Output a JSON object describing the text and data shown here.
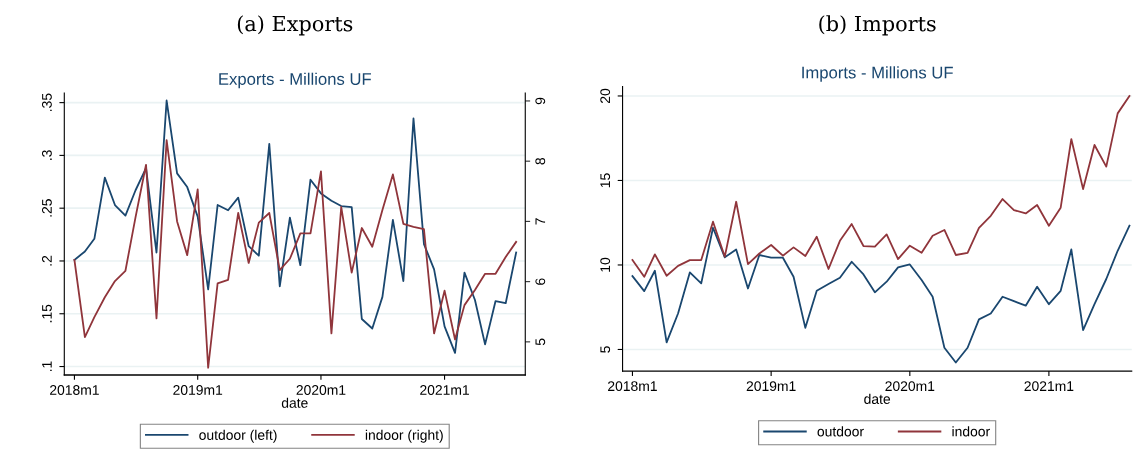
{
  "chart_data": [
    {
      "type": "line",
      "title": "(a) Exports",
      "subtitle": "Exports - Millions UF",
      "xlabel": "date",
      "x": [
        "2018-01",
        "2018-02",
        "2018-03",
        "2018-04",
        "2018-05",
        "2018-06",
        "2018-07",
        "2018-08",
        "2018-09",
        "2018-10",
        "2018-11",
        "2018-12",
        "2019-01",
        "2019-02",
        "2019-03",
        "2019-04",
        "2019-05",
        "2019-06",
        "2019-07",
        "2019-08",
        "2019-09",
        "2019-10",
        "2019-11",
        "2019-12",
        "2020-01",
        "2020-02",
        "2020-03",
        "2020-04",
        "2020-05",
        "2020-06",
        "2020-07",
        "2020-08",
        "2020-09",
        "2020-10",
        "2020-11",
        "2020-12",
        "2021-01",
        "2021-02",
        "2021-03",
        "2021-04",
        "2021-05",
        "2021-06",
        "2021-07",
        "2021-08"
      ],
      "xlim": [
        "2017-12-02",
        "2021-08-28"
      ],
      "xticks": [
        {
          "value": "2018-01",
          "label": "2018m1"
        },
        {
          "value": "2019-01",
          "label": "2019m1"
        },
        {
          "value": "2020-01",
          "label": "2020m1"
        },
        {
          "value": "2021-01",
          "label": "2021m1"
        }
      ],
      "ylim": [
        0.092,
        0.359
      ],
      "yticks": [
        {
          "value": 0.1,
          "label": ".1"
        },
        {
          "value": 0.15,
          "label": ".15"
        },
        {
          "value": 0.2,
          "label": ".2"
        },
        {
          "value": 0.25,
          "label": ".25"
        },
        {
          "value": 0.3,
          "label": ".3"
        },
        {
          "value": 0.35,
          "label": ".35"
        }
      ],
      "y2lim": [
        4.45,
        9.13
      ],
      "y2ticks": [
        5,
        6,
        7,
        8,
        9
      ],
      "grid": "y",
      "legend": "bottom",
      "series": [
        {
          "name": "outdoor (left)",
          "color": "#1a476f",
          "values": [
            0.201,
            0.209,
            0.221,
            0.279,
            0.253,
            0.243,
            0.267,
            0.288,
            0.208,
            0.352,
            0.283,
            0.27,
            0.242,
            0.173,
            0.253,
            0.248,
            0.26,
            0.214,
            0.205,
            0.311,
            0.176,
            0.241,
            0.196,
            0.277,
            0.264,
            0.257,
            0.252,
            0.251,
            0.145,
            0.136,
            0.166,
            0.239,
            0.181,
            0.335,
            0.216,
            0.192,
            0.138,
            0.113,
            0.189,
            0.163,
            0.121,
            0.162,
            0.16,
            0.208
          ]
        },
        {
          "name": "indoor (right)",
          "color": "#90353b",
          "axis": "y2",
          "values": [
            6.36,
            5.08,
            5.41,
            5.74,
            6.01,
            6.18,
            7.07,
            7.94,
            5.39,
            8.35,
            7.0,
            6.44,
            7.53,
            4.57,
            5.97,
            6.03,
            7.14,
            6.31,
            6.98,
            7.14,
            6.19,
            6.38,
            6.8,
            6.8,
            7.83,
            5.14,
            7.24,
            6.15,
            6.89,
            6.58,
            7.19,
            7.78,
            6.96,
            6.91,
            6.87,
            5.14,
            5.85,
            5.04,
            5.61,
            5.86,
            6.13,
            6.13,
            6.41,
            6.66
          ]
        }
      ]
    },
    {
      "type": "line",
      "title": "(b) Imports",
      "subtitle": "Imports - Millions UF",
      "xlabel": "date",
      "x": [
        "2018-01",
        "2018-02",
        "2018-03",
        "2018-04",
        "2018-05",
        "2018-06",
        "2018-07",
        "2018-08",
        "2018-09",
        "2018-10",
        "2018-11",
        "2018-12",
        "2019-01",
        "2019-02",
        "2019-03",
        "2019-04",
        "2019-05",
        "2019-06",
        "2019-07",
        "2019-08",
        "2019-09",
        "2019-10",
        "2019-11",
        "2019-12",
        "2020-01",
        "2020-02",
        "2020-03",
        "2020-04",
        "2020-05",
        "2020-06",
        "2020-07",
        "2020-08",
        "2020-09",
        "2020-10",
        "2020-11",
        "2020-12",
        "2021-01",
        "2021-02",
        "2021-03",
        "2021-04",
        "2021-05",
        "2021-06",
        "2021-07",
        "2021-08"
      ],
      "xlim": [
        "2017-12-06",
        "2021-08-07"
      ],
      "xticks": [
        {
          "value": "2018-01",
          "label": "2018m1"
        },
        {
          "value": "2019-01",
          "label": "2019m1"
        },
        {
          "value": "2020-01",
          "label": "2020m1"
        },
        {
          "value": "2021-01",
          "label": "2021m1"
        }
      ],
      "ylim": [
        3.72,
        20.55
      ],
      "yticks": [
        5,
        10,
        15,
        20
      ],
      "grid": "y",
      "legend": "bottom",
      "series": [
        {
          "name": "outdoor",
          "color": "#1a476f",
          "values": [
            9.34,
            8.45,
            9.66,
            5.42,
            7.13,
            9.56,
            8.91,
            12.2,
            10.45,
            10.92,
            8.61,
            10.59,
            10.43,
            10.43,
            9.3,
            6.28,
            8.47,
            8.87,
            9.24,
            10.19,
            9.44,
            8.38,
            9.01,
            9.86,
            10.03,
            9.11,
            8.12,
            5.1,
            4.23,
            5.1,
            6.78,
            7.13,
            8.12,
            7.86,
            7.59,
            8.71,
            7.68,
            8.47,
            10.92,
            6.15,
            7.68,
            9.17,
            10.84,
            12.32
          ]
        },
        {
          "name": "indoor",
          "color": "#90353b",
          "values": [
            10.29,
            9.3,
            10.63,
            9.36,
            9.95,
            10.29,
            10.29,
            12.56,
            10.49,
            13.74,
            10.05,
            10.68,
            11.18,
            10.55,
            11.04,
            10.53,
            11.67,
            9.76,
            11.43,
            12.42,
            11.12,
            11.08,
            11.81,
            10.35,
            11.14,
            10.72,
            11.73,
            12.07,
            10.59,
            10.72,
            12.2,
            12.91,
            13.9,
            13.25,
            13.05,
            13.55,
            12.32,
            13.39,
            17.45,
            14.49,
            17.1,
            15.82,
            18.97,
            20.0
          ]
        }
      ]
    }
  ]
}
